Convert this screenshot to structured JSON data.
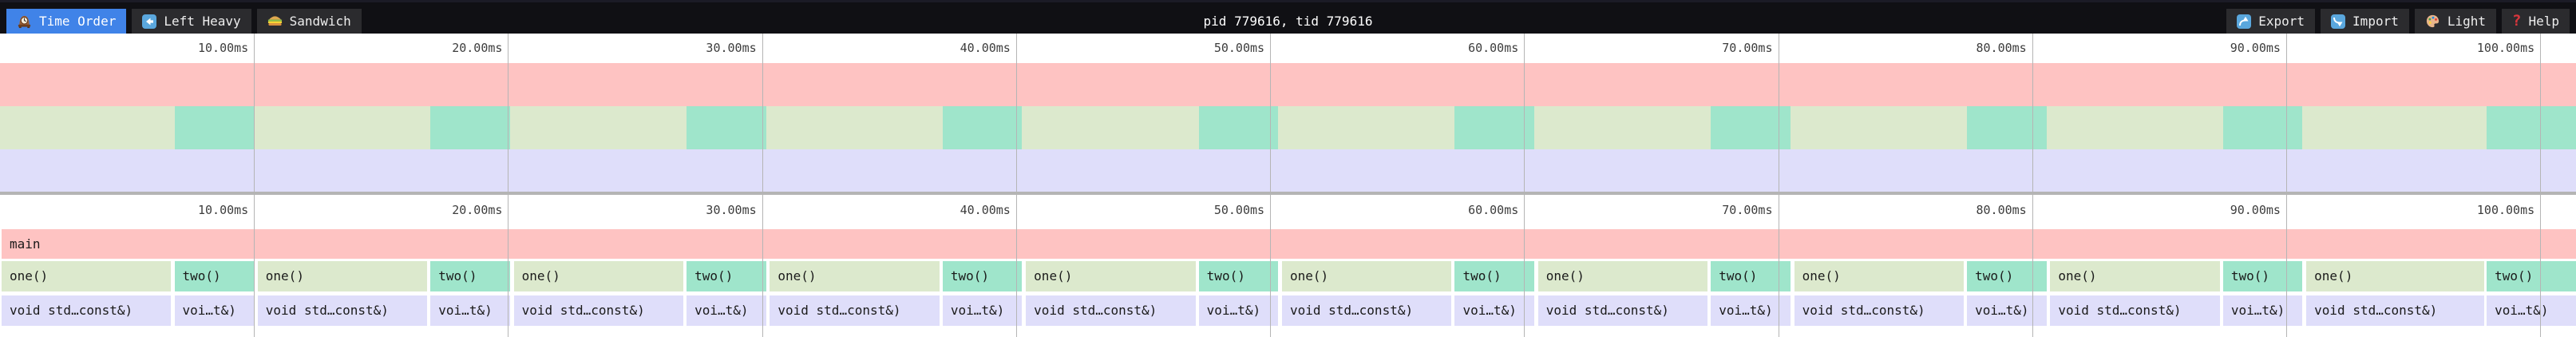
{
  "toolbar": {
    "tabs": [
      {
        "id": "time-order",
        "icon": "clock-icon",
        "label": "Time Order",
        "active": true
      },
      {
        "id": "left-heavy",
        "icon": "left-arrow-icon",
        "label": "Left Heavy",
        "active": false
      },
      {
        "id": "sandwich",
        "icon": "sandwich-icon",
        "label": "Sandwich",
        "active": false
      }
    ],
    "title": "pid 779616, tid 779616",
    "actions": [
      {
        "id": "export",
        "icon": "export-icon",
        "label": "Export"
      },
      {
        "id": "import",
        "icon": "import-icon",
        "label": "Import"
      },
      {
        "id": "theme",
        "icon": "palette-icon",
        "label": "Light"
      },
      {
        "id": "help",
        "icon": "help-icon",
        "label": "Help"
      }
    ]
  },
  "ruler": {
    "unit": "ms",
    "ticks": [
      {
        "label": "10.00ms",
        "pos": 9.861
      },
      {
        "label": "20.00ms",
        "pos": 19.722
      },
      {
        "label": "30.00ms",
        "pos": 29.583
      },
      {
        "label": "40.00ms",
        "pos": 39.444
      },
      {
        "label": "50.00ms",
        "pos": 49.305
      },
      {
        "label": "60.00ms",
        "pos": 59.166
      },
      {
        "label": "70.00ms",
        "pos": 69.027
      },
      {
        "label": "80.00ms",
        "pos": 78.888
      },
      {
        "label": "90.00ms",
        "pos": 88.749
      },
      {
        "label": "100.00ms",
        "pos": 98.61
      }
    ]
  },
  "flamegraph": {
    "root_label": "main",
    "one_label": "one()",
    "two_label": "two()",
    "one_child_label": "void std…const&)",
    "two_child_label": "voi…t&)",
    "iterations": [
      [
        0.062,
        6.647,
        6.771,
        9.854
      ],
      [
        10.003,
        16.588,
        16.712,
        19.795
      ],
      [
        19.944,
        26.529,
        26.653,
        29.736
      ],
      [
        29.885,
        36.47,
        36.594,
        39.677
      ],
      [
        39.826,
        46.411,
        46.535,
        49.618
      ],
      [
        49.767,
        56.352,
        56.476,
        59.559
      ],
      [
        59.708,
        66.293,
        66.417,
        69.5
      ],
      [
        69.649,
        76.234,
        76.358,
        79.441
      ],
      [
        79.59,
        86.175,
        86.299,
        89.382
      ],
      [
        89.531,
        96.437,
        96.533,
        100.0
      ]
    ]
  },
  "colors": {
    "accent_blue": "#4083e8",
    "frame_pink": "#fec3c2",
    "frame_green": "#dce9cd",
    "frame_teal": "#9fe5cb",
    "frame_lavender": "#dfdefa",
    "gridline": "#b5b5b5",
    "divider": "#b4b4b4",
    "toolbar_bg": "#101014",
    "button_bg": "#2b2b2e"
  }
}
